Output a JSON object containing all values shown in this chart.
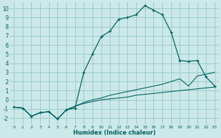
{
  "xlabel": "Humidex (Indice chaleur)",
  "xlim": [
    -0.5,
    23.5
  ],
  "ylim": [
    -2.7,
    10.7
  ],
  "xticks": [
    0,
    1,
    2,
    3,
    4,
    5,
    6,
    7,
    8,
    9,
    10,
    11,
    12,
    13,
    14,
    15,
    16,
    17,
    18,
    19,
    20,
    21,
    22,
    23
  ],
  "yticks": [
    -2,
    -1,
    0,
    1,
    2,
    3,
    4,
    5,
    6,
    7,
    8,
    9,
    10
  ],
  "bg_color": "#cce8e8",
  "grid_color": "#99cccc",
  "line_color": "#006060",
  "line1_x": [
    0,
    1,
    2,
    3,
    4,
    5,
    6,
    7,
    8,
    9,
    10,
    11,
    12,
    13,
    14,
    15,
    16,
    17,
    18,
    19,
    20,
    21,
    22,
    23
  ],
  "line1_y": [
    -0.8,
    -0.9,
    -1.8,
    -1.4,
    -1.3,
    -2.1,
    -1.1,
    -0.9,
    3.0,
    5.0,
    6.9,
    7.5,
    8.8,
    9.0,
    9.3,
    10.3,
    9.8,
    9.3,
    7.4,
    4.3,
    4.2,
    4.3,
    2.5,
    1.5
  ],
  "line2_x": [
    0,
    1,
    2,
    3,
    4,
    5,
    6,
    7,
    8,
    9,
    10,
    11,
    12,
    13,
    14,
    15,
    16,
    17,
    18,
    19,
    20,
    21,
    22,
    23
  ],
  "line2_y": [
    -0.8,
    -0.9,
    -1.8,
    -1.4,
    -1.3,
    -2.1,
    -1.1,
    -0.7,
    -0.3,
    0.0,
    0.2,
    0.5,
    0.7,
    0.9,
    1.1,
    1.3,
    1.5,
    1.7,
    2.0,
    2.3,
    1.5,
    2.6,
    2.8,
    3.0
  ],
  "line3_x": [
    0,
    1,
    2,
    3,
    4,
    5,
    6,
    7,
    8,
    9,
    10,
    11,
    12,
    13,
    14,
    15,
    16,
    17,
    18,
    19,
    20,
    21,
    22,
    23
  ],
  "line3_y": [
    -0.8,
    -0.9,
    -1.8,
    -1.4,
    -1.3,
    -2.1,
    -1.1,
    -0.7,
    -0.4,
    -0.2,
    0.0,
    0.1,
    0.2,
    0.3,
    0.5,
    0.6,
    0.7,
    0.8,
    0.9,
    1.0,
    1.1,
    1.2,
    1.3,
    1.4
  ]
}
